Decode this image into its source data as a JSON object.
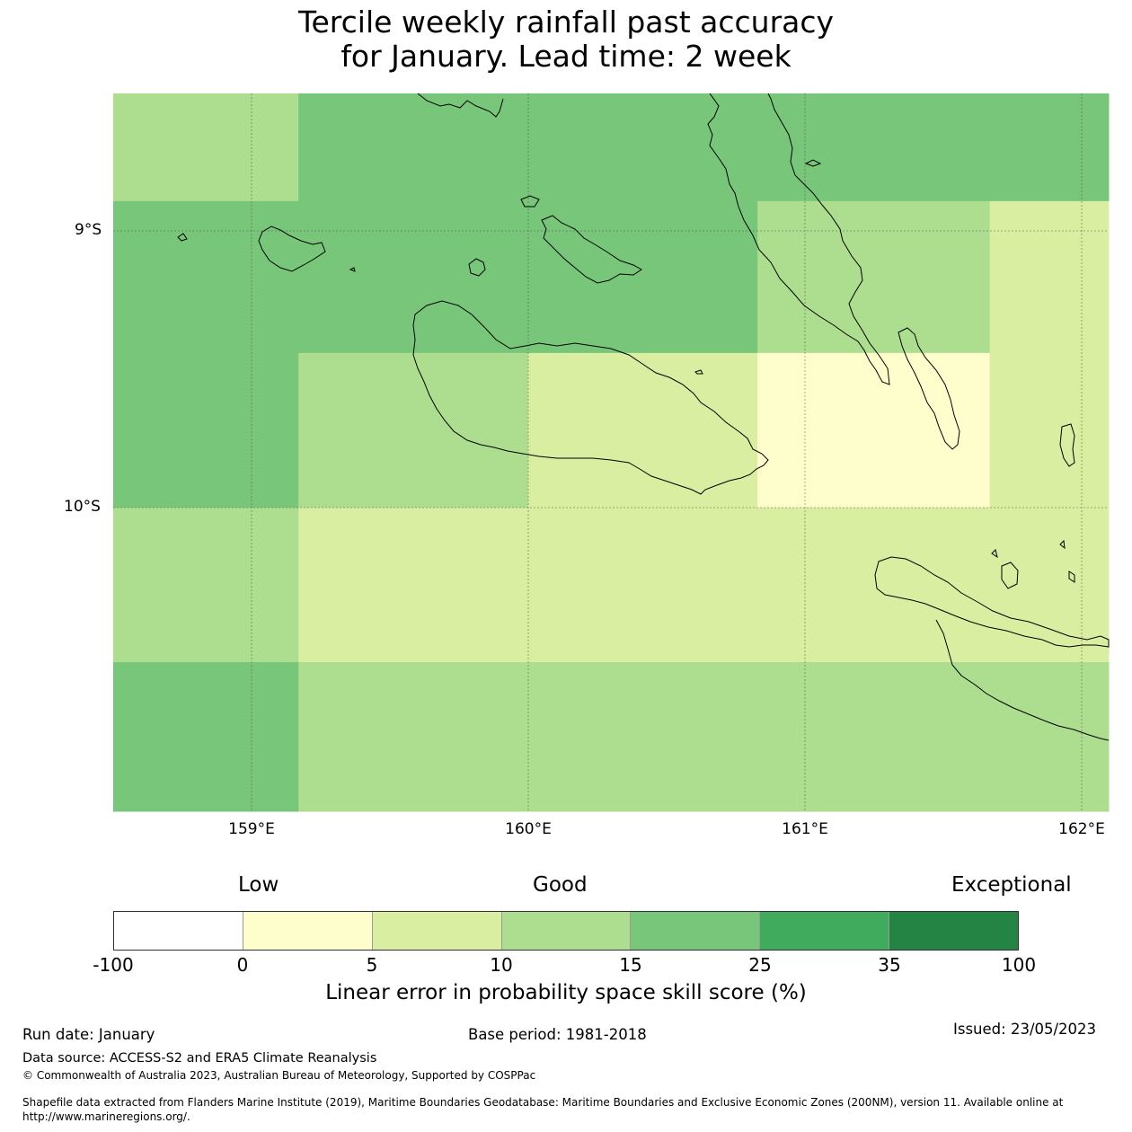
{
  "title_line1": "Tercile weekly rainfall past accuracy",
  "title_line2": "for January. Lead time: 2 week",
  "colors": {
    "c0": "#ffffff",
    "c1": "#fefecc",
    "c2": "#d9eea1",
    "c3": "#addd8e",
    "c4": "#78c679",
    "c5": "#41ab5d",
    "c6": "#238443",
    "coastline": "#000000",
    "gridline": "#4d4d4d"
  },
  "map": {
    "lon_range": [
      158.5,
      162.1
    ],
    "lat_range": [
      -11.1,
      -8.5
    ],
    "lat_labels": [
      "9°S",
      "10°S"
    ],
    "lon_labels": [
      "159°E",
      "160°E",
      "161°E",
      "162°E"
    ],
    "skill_grid": {
      "description_units": "skill score category index (0-6) per cell",
      "lon_edges": [
        158.5,
        159.17,
        160.0,
        160.83,
        161.67,
        162.1
      ],
      "lat_edges": [
        -8.5,
        -8.89,
        -9.44,
        -10.0,
        -10.56,
        -11.1
      ],
      "categories": [
        [
          3,
          4,
          4,
          4,
          4
        ],
        [
          4,
          4,
          4,
          3,
          2
        ],
        [
          4,
          3,
          2,
          1,
          2
        ],
        [
          3,
          2,
          2,
          2,
          2
        ],
        [
          4,
          3,
          3,
          3,
          3
        ]
      ]
    }
  },
  "colorbar": {
    "category_labels": {
      "low": "Low",
      "good": "Good",
      "exceptional": "Exceptional"
    },
    "ticks": [
      "-100",
      "0",
      "5",
      "10",
      "15",
      "25",
      "35",
      "100"
    ],
    "title": "Linear error in probability space skill score (%)"
  },
  "footer": {
    "run_date": "Run date: January",
    "base_period": "Base period: 1981-2018",
    "issued": "Issued: 23/05/2023",
    "data_source": "Data source: ACCESS-S2 and ERA5 Climate Reanalysis",
    "copyright": "© Commonwealth of Australia 2023, Australian Bureau of Meteorology, Supported by COSPPac",
    "shapefile_line1": "Shapefile data extracted from Flanders Marine Institute (2019), Maritime Boundaries Geodatabase: Maritime Boundaries and Exclusive Economic Zones (200NM), version 11. Available online at",
    "shapefile_line2": "http://www.marineregions.org/."
  }
}
